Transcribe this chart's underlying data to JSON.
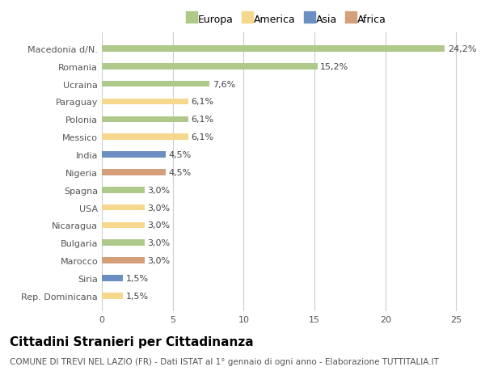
{
  "categories": [
    "Rep. Dominicana",
    "Siria",
    "Marocco",
    "Bulgaria",
    "Nicaragua",
    "USA",
    "Spagna",
    "Nigeria",
    "India",
    "Messico",
    "Polonia",
    "Paraguay",
    "Ucraina",
    "Romania",
    "Macedonia d/N."
  ],
  "values": [
    1.5,
    1.5,
    3.0,
    3.0,
    3.0,
    3.0,
    3.0,
    4.5,
    4.5,
    6.1,
    6.1,
    6.1,
    7.6,
    15.2,
    24.2
  ],
  "labels": [
    "1,5%",
    "1,5%",
    "3,0%",
    "3,0%",
    "3,0%",
    "3,0%",
    "3,0%",
    "4,5%",
    "4,5%",
    "6,1%",
    "6,1%",
    "6,1%",
    "7,6%",
    "15,2%",
    "24,2%"
  ],
  "colors": [
    "#f5d78e",
    "#6b8fc2",
    "#d4a07a",
    "#aec98a",
    "#f5d78e",
    "#f5d78e",
    "#aec98a",
    "#d4a07a",
    "#6b8fc2",
    "#f5d78e",
    "#aec98a",
    "#f5d78e",
    "#aec98a",
    "#aec98a",
    "#aec98a"
  ],
  "legend_labels": [
    "Europa",
    "America",
    "Asia",
    "Africa"
  ],
  "legend_colors": [
    "#aec98a",
    "#f5d78e",
    "#6b8fc2",
    "#d4a07a"
  ],
  "title": "Cittadini Stranieri per Cittadinanza",
  "subtitle": "COMUNE DI TREVI NEL LAZIO (FR) - Dati ISTAT al 1° gennaio di ogni anno - Elaborazione TUTTITALIA.IT",
  "xlim": [
    0,
    26
  ],
  "xticks": [
    0,
    5,
    10,
    15,
    20,
    25
  ],
  "background_color": "#ffffff",
  "bar_height": 0.35,
  "grid_color": "#cccccc",
  "title_fontsize": 11,
  "subtitle_fontsize": 7.5,
  "label_fontsize": 8,
  "tick_fontsize": 8,
  "legend_fontsize": 9
}
